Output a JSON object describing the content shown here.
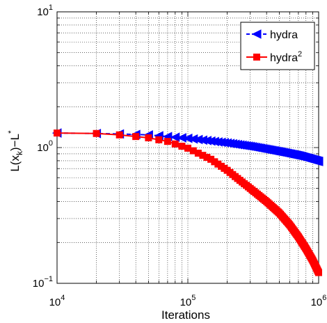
{
  "chart_data": {
    "type": "line",
    "xlabel": "Iterations",
    "ylabel": "L(x_k)−L*",
    "x_scale": "log",
    "y_scale": "log",
    "xlim": [
      10000,
      1000000
    ],
    "ylim": [
      0.1,
      10
    ],
    "grid": true,
    "legend_placement": "top-right",
    "x_ticks": [
      {
        "value": 10000,
        "base": "10",
        "exp": "4"
      },
      {
        "value": 100000,
        "base": "10",
        "exp": "5"
      },
      {
        "value": 1000000,
        "base": "10",
        "exp": "6"
      }
    ],
    "y_ticks": [
      {
        "value": 0.1,
        "base": "10",
        "exp": "−1"
      },
      {
        "value": 1,
        "base": "10",
        "exp": "0"
      },
      {
        "value": 10,
        "base": "10",
        "exp": "1"
      }
    ],
    "series": [
      {
        "name": "hydra",
        "name_sup": "",
        "color": "#0000ff",
        "marker": "triangle-left",
        "linestyle": "dashed",
        "points": [
          [
            10000,
            1.28
          ],
          [
            20000,
            1.27
          ],
          [
            30000,
            1.26
          ],
          [
            50000,
            1.24
          ],
          [
            100000,
            1.17
          ],
          [
            200000,
            1.08
          ],
          [
            300000,
            1.02
          ],
          [
            500000,
            0.93
          ],
          [
            700000,
            0.87
          ],
          [
            1000000,
            0.79
          ]
        ]
      },
      {
        "name": "hydra",
        "name_sup": "2",
        "color": "#ff0000",
        "marker": "square",
        "linestyle": "solid",
        "points": [
          [
            10000,
            1.28
          ],
          [
            20000,
            1.27
          ],
          [
            30000,
            1.24
          ],
          [
            50000,
            1.18
          ],
          [
            70000,
            1.11
          ],
          [
            100000,
            0.99
          ],
          [
            150000,
            0.82
          ],
          [
            200000,
            0.68
          ],
          [
            300000,
            0.5
          ],
          [
            400000,
            0.4
          ],
          [
            500000,
            0.33
          ],
          [
            600000,
            0.27
          ],
          [
            700000,
            0.22
          ],
          [
            800000,
            0.18
          ],
          [
            900000,
            0.148
          ],
          [
            1000000,
            0.12
          ]
        ]
      }
    ]
  }
}
